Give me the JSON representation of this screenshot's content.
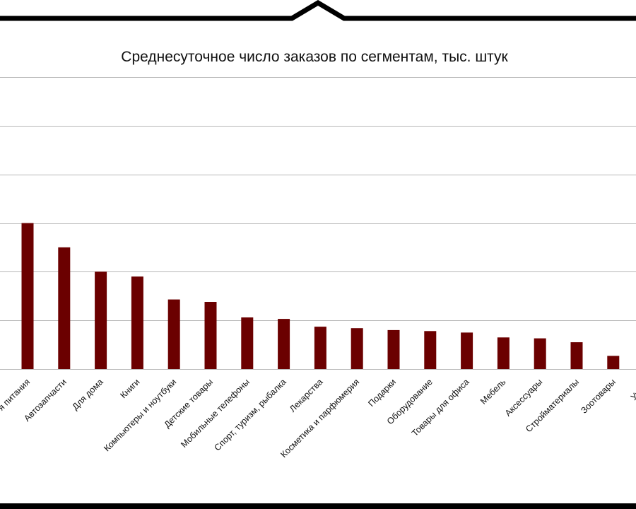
{
  "colors": {
    "bar": "#6b0000",
    "frame": "#000000",
    "grid": "#b8b8b8",
    "background": "#ffffff"
  },
  "chart_data": {
    "type": "bar",
    "title": "Среднесуточное число заказов по сегментам, тыс. штук",
    "xlabel": "",
    "ylabel": "",
    "ylim": [
      0,
      6
    ],
    "grid": true,
    "legend": "none",
    "y_tick_labels_visible": false,
    "categories": [
      "Товары для питания",
      "Автозапчасти",
      "Для дома",
      "Книги",
      "Компьютеры и ноутбуки",
      "Детские товары",
      "Мобильные телефоны",
      "Спорт, туризм, рыбалка",
      "Лекарства",
      "Косметика и парфюмерия",
      "Подарки",
      "Оборудование",
      "Товары для офиса",
      "Мебель",
      "Аксессуары",
      "Стройматериалы",
      "Зоотовары",
      "Украшения"
    ],
    "visible_category_text": [
      "я питания",
      "Автозапчасти",
      "Для дома",
      "Книги",
      "Компьютеры и ноутбуки",
      "Детские товары",
      "Мобильные телефоны",
      "Спорт, туризм, рыбалка",
      "Лекарства",
      "Косметика и парфюмерия",
      "Подарки",
      "Оборудование",
      "Товары для офиса",
      "Мебель",
      "Аксессуары",
      "Стройматериалы",
      "Зоотовары",
      "Украш"
    ],
    "values": [
      3.0,
      2.5,
      2.0,
      1.9,
      1.43,
      1.38,
      1.06,
      1.03,
      0.87,
      0.84,
      0.8,
      0.78,
      0.75,
      0.65,
      0.63,
      0.55,
      0.27,
      null
    ]
  }
}
